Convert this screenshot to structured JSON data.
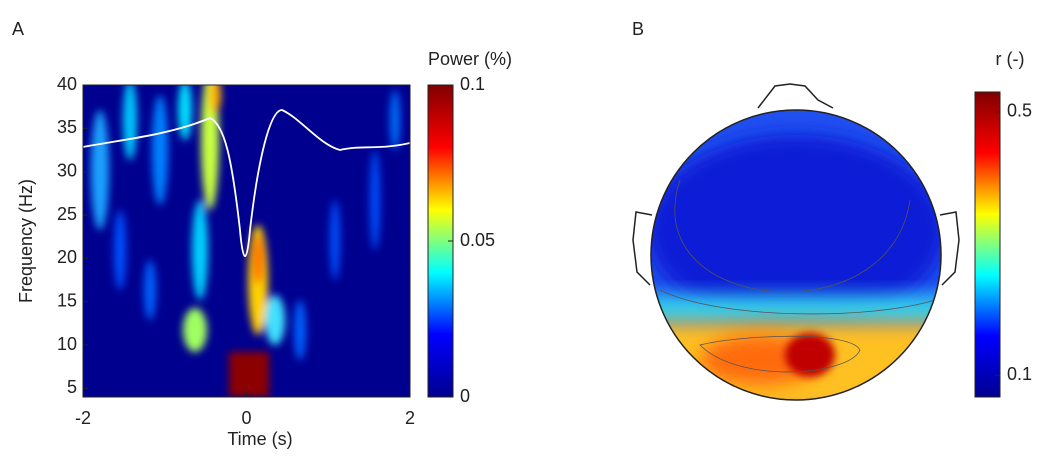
{
  "chart_data": [
    {
      "type": "heatmap",
      "panel": "A",
      "xlabel": "Time (s)",
      "ylabel": "Frequency (Hz)",
      "colorbar_label": "Power (%)",
      "xlim": [
        -2,
        2
      ],
      "xticks": [
        -2,
        0,
        2
      ],
      "ylim": [
        4,
        40
      ],
      "yticks": [
        5,
        10,
        15,
        20,
        25,
        30,
        35,
        40
      ],
      "clim": [
        0,
        0.1
      ],
      "cticks": [
        0,
        0.05,
        0.1
      ],
      "colormap": [
        "#00008f",
        "#0000ff",
        "#00ffff",
        "#ffff00",
        "#ff0000",
        "#800000"
      ]
    },
    {
      "type": "topoplot",
      "panel": "B",
      "colorbar_label": "r (-)",
      "clim": [
        0.067,
        0.53
      ],
      "cticks": [
        0.1,
        0.5
      ],
      "colormap": [
        "#00008f",
        "#0000ff",
        "#00ffff",
        "#ffff00",
        "#ff0000",
        "#800000"
      ]
    }
  ]
}
